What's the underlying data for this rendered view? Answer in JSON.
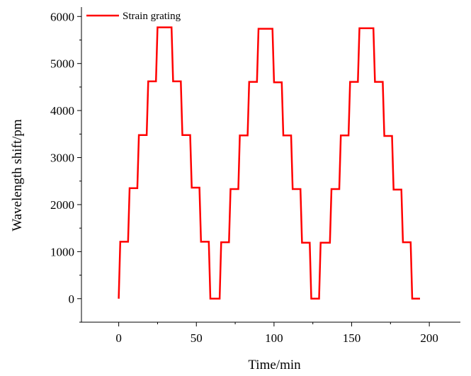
{
  "chart_data": {
    "type": "line",
    "title": "",
    "xlabel": "Time/min",
    "ylabel": "Wavelength shift/pm",
    "xlim": [
      -24,
      220
    ],
    "ylim": [
      -500,
      6200
    ],
    "xticks": [
      "0",
      "50",
      "100",
      "150",
      "200"
    ],
    "xtick_values": [
      0,
      50,
      100,
      150,
      200
    ],
    "yticks": [
      "0",
      "1000",
      "2000",
      "3000",
      "4000",
      "5000",
      "6000"
    ],
    "ytick_values": [
      0,
      1000,
      2000,
      3000,
      4000,
      5000,
      6000
    ],
    "grid": false,
    "legend_position": "top-left",
    "series": [
      {
        "name": "Strain grating",
        "color": "#ff0000",
        "x": [
          0,
          1,
          1,
          6,
          7,
          7,
          12,
          13,
          13,
          18,
          19,
          19,
          24,
          25,
          25,
          34,
          35,
          35,
          40,
          41,
          41,
          46,
          47,
          47,
          52,
          53,
          53,
          58,
          59,
          59,
          65,
          66,
          66,
          71,
          72,
          72,
          77,
          78,
          78,
          83,
          84,
          84,
          89,
          90,
          90,
          99,
          100,
          100,
          105,
          106,
          106,
          111,
          112,
          112,
          117,
          118,
          118,
          123,
          124,
          124,
          129,
          130,
          130,
          136,
          137,
          137,
          142,
          143,
          143,
          148,
          149,
          149,
          154,
          155,
          155,
          164,
          165,
          165,
          170,
          171,
          171,
          176,
          177,
          177,
          182,
          183,
          183,
          188,
          189,
          189,
          194
        ],
        "y": [
          0,
          1210,
          1210,
          1210,
          2350,
          2350,
          2350,
          3480,
          3480,
          3480,
          4620,
          4620,
          4620,
          5770,
          5770,
          5770,
          4620,
          4620,
          4620,
          3480,
          3480,
          3480,
          2360,
          2360,
          2360,
          1210,
          1210,
          1210,
          0,
          0,
          0,
          1200,
          1200,
          1200,
          2330,
          2330,
          2330,
          3470,
          3470,
          3470,
          4610,
          4610,
          4610,
          5740,
          5740,
          5740,
          4600,
          4600,
          4600,
          3470,
          3470,
          3470,
          2330,
          2330,
          2330,
          1190,
          1190,
          1190,
          0,
          0,
          0,
          1190,
          1190,
          1190,
          2330,
          2330,
          2330,
          3470,
          3470,
          3470,
          4610,
          4610,
          4610,
          5750,
          5750,
          5750,
          4610,
          4610,
          4610,
          3460,
          3460,
          3460,
          2320,
          2320,
          2320,
          1200,
          1200,
          1200,
          0,
          0,
          0
        ]
      }
    ]
  }
}
